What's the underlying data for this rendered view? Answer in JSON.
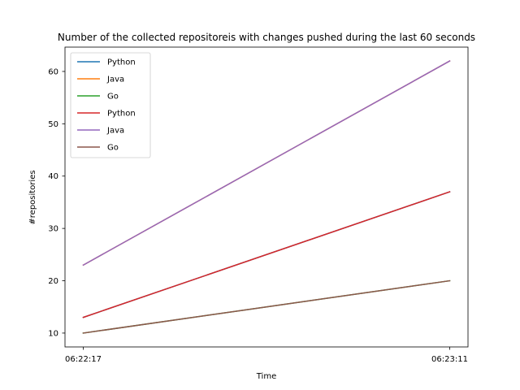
{
  "chart_data": {
    "type": "line",
    "title": "Number of the collected repositoreis with changes pushed during the last 60 seconds",
    "xlabel": "Time",
    "ylabel": "#repositories",
    "categories": [
      "06:22:17",
      "06:23:11"
    ],
    "ylim": [
      7.35,
      64.65
    ],
    "yticks": [
      10,
      20,
      30,
      40,
      50,
      60
    ],
    "grid": false,
    "legend_position": "top-left",
    "series": [
      {
        "name": "Python",
        "color": "#1f77b4",
        "values": [
          13,
          37
        ]
      },
      {
        "name": "Java",
        "color": "#ff7f0e",
        "values": [
          23,
          62
        ]
      },
      {
        "name": "Go",
        "color": "#2ca02c",
        "values": [
          10,
          20
        ]
      },
      {
        "name": "Python",
        "color": "#d62728",
        "values": [
          13,
          37
        ]
      },
      {
        "name": "Java",
        "color": "#9467bd",
        "values": [
          23,
          62
        ]
      },
      {
        "name": "Go",
        "color": "#8c564b",
        "values": [
          10,
          20
        ]
      }
    ]
  }
}
